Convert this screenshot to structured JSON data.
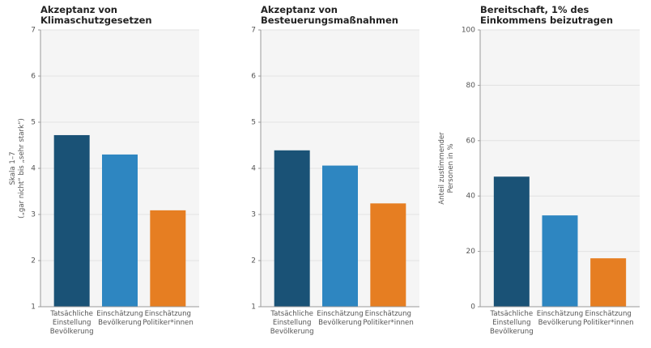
{
  "chart_data": [
    {
      "type": "bar",
      "title": "Akzeptanz von Klimaschutzgesetzen",
      "ylabel": [
        "Skala 1–7",
        "(„gar nicht“ bis „sehr stark“)"
      ],
      "categories": [
        "Tatsächliche Einstellung Bevölkerung",
        "Einschätzung Bevölkerung",
        "Einschätzung Politiker*innen"
      ],
      "values": [
        4.72,
        4.3,
        3.09
      ],
      "colors": [
        "#1a5276",
        "#2e86c1",
        "#e67e22"
      ],
      "ylim": [
        1,
        7
      ],
      "yticks": [
        1,
        2,
        3,
        4,
        5,
        6,
        7
      ],
      "grid": true
    },
    {
      "type": "bar",
      "title": "Akzeptanz von Besteuerungsmaßnahmen",
      "categories": [
        "Tatsächliche Einstellung Bevölkerung",
        "Einschätzung Bevölkerung",
        "Einschätzung Politiker*innen"
      ],
      "values": [
        4.39,
        4.06,
        3.24
      ],
      "colors": [
        "#1a5276",
        "#2e86c1",
        "#e67e22"
      ],
      "ylim": [
        1,
        7
      ],
      "yticks": [
        1,
        2,
        3,
        4,
        5,
        6,
        7
      ],
      "grid": true
    },
    {
      "type": "bar",
      "title": "Bereitschaft, 1% des Einkommens beizutragen",
      "ylabel": [
        "Anteil zustimmender",
        "Personen in %"
      ],
      "categories": [
        "Tatsächliche Einstellung Bevölkerung",
        "Einschätzung Bevölkerung",
        "Einschätzung Politiker*innen"
      ],
      "values": [
        47,
        33,
        17.5
      ],
      "colors": [
        "#1a5276",
        "#2e86c1",
        "#e67e22"
      ],
      "ylim": [
        0,
        100
      ],
      "yticks": [
        0,
        20,
        40,
        60,
        80,
        100
      ],
      "grid": true
    }
  ]
}
